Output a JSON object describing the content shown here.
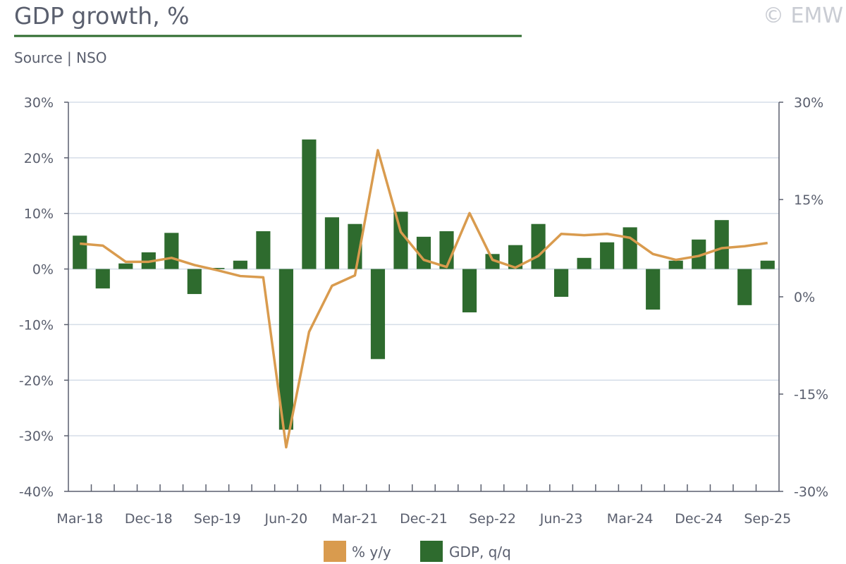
{
  "header": {
    "title": "GDP growth, %",
    "source": "Source | NSO",
    "watermark": "© EMW"
  },
  "colors": {
    "bar": "#2e6b2e",
    "line": "#d99b4e",
    "grid": "#d5dde8",
    "axis": "#5a5f6e",
    "title_rule": "#2e6b2e"
  },
  "chart_data": {
    "type": "bar+line",
    "title": "GDP growth, %",
    "categories": [
      "Mar-18",
      "Jun-18",
      "Sep-18",
      "Dec-18",
      "Mar-19",
      "Jun-19",
      "Sep-19",
      "Dec-19",
      "Mar-20",
      "Jun-20",
      "Sep-20",
      "Dec-20",
      "Mar-21",
      "Jun-21",
      "Sep-21",
      "Dec-21",
      "Mar-22",
      "Jun-22",
      "Sep-22",
      "Dec-22",
      "Mar-23",
      "Jun-23",
      "Sep-23",
      "Dec-23",
      "Mar-24",
      "Jun-24",
      "Sep-24",
      "Dec-24",
      "Mar-25",
      "Jun-25",
      "Sep-25"
    ],
    "x_tick_labels": [
      "Mar-18",
      "Dec-18",
      "Sep-19",
      "Jun-20",
      "Mar-21",
      "Dec-21",
      "Sep-22",
      "Jun-23",
      "Mar-24",
      "Dec-24",
      "Sep-25"
    ],
    "series": [
      {
        "name": "GDP, q/q",
        "type": "bar",
        "axis": "left",
        "values": [
          6.0,
          -3.5,
          1.0,
          3.0,
          6.5,
          -4.5,
          0.2,
          1.5,
          6.8,
          -28.9,
          23.3,
          9.3,
          8.1,
          -16.2,
          10.3,
          5.8,
          6.8,
          -7.8,
          2.7,
          4.3,
          8.1,
          -5.0,
          2.0,
          4.8,
          7.5,
          -7.3,
          1.5,
          5.3,
          8.8,
          -6.5,
          1.5
        ]
      },
      {
        "name": "% y/y",
        "type": "line",
        "axis": "right",
        "values": [
          8.2,
          7.9,
          5.4,
          5.4,
          6.0,
          4.9,
          4.1,
          3.2,
          3.0,
          -23.2,
          -5.4,
          1.7,
          3.3,
          22.6,
          10.0,
          5.7,
          4.6,
          12.9,
          5.7,
          4.5,
          6.3,
          9.7,
          9.5,
          9.7,
          9.1,
          6.6,
          5.7,
          6.3,
          7.5,
          7.8,
          8.3
        ]
      }
    ],
    "left_axis": {
      "ylim": [
        -40,
        30
      ],
      "ticks": [
        "30%",
        "20%",
        "10%",
        "0%",
        "-10%",
        "-20%",
        "-30%",
        "-40%"
      ],
      "tick_values": [
        30,
        20,
        10,
        0,
        -10,
        -20,
        -30,
        -40
      ]
    },
    "right_axis": {
      "ylim": [
        -30,
        30
      ],
      "ticks": [
        "30%",
        "15%",
        "0%",
        "-15%",
        "-30%"
      ],
      "tick_values": [
        30,
        15,
        0,
        -15,
        -30
      ]
    },
    "legend": {
      "placement": "bottom",
      "entries": [
        "% y/y",
        "GDP, q/q"
      ]
    },
    "grid": true
  }
}
